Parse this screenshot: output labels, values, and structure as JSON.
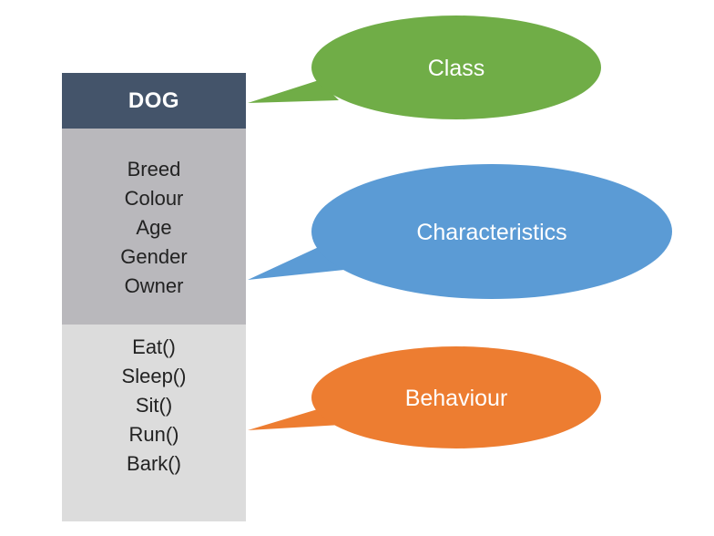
{
  "class_box": {
    "name": "DOG",
    "attributes": [
      "Breed",
      "Colour",
      "Age",
      "Gender",
      "Owner"
    ],
    "methods": [
      "Eat()",
      "Sleep()",
      "Sit()",
      "Run()",
      "Bark()"
    ]
  },
  "callouts": {
    "class": {
      "label": "Class",
      "color": "#70ad47"
    },
    "characteristics": {
      "label": "Characteristics",
      "color": "#5b9bd5"
    },
    "behaviour": {
      "label": "Behaviour",
      "color": "#ed7d31"
    }
  },
  "colors": {
    "header": "#44546a",
    "attributes_bg": "#b9b8bc",
    "methods_bg": "#dcdcdc"
  }
}
